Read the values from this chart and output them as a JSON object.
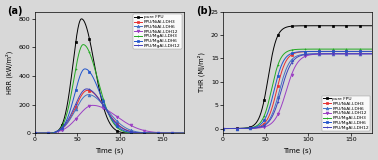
{
  "labels": [
    "pure FPU",
    "FPU/NiAl-LDH3",
    "FPU/NiAl-LDH6",
    "FPU/NiAl-LDH12",
    "FPU/MgAl-LDH3",
    "FPU/MgAl-LDH6",
    "FPU/MgAl-LDH12"
  ],
  "colors": [
    "black",
    "#e83030",
    "#4472c4",
    "#9b3fc4",
    "#22aa22",
    "#2255cc",
    "#4040bb"
  ],
  "markers": [
    "s",
    "s",
    "^",
    "v",
    "+",
    "s",
    "+"
  ],
  "hrr_ylim": [
    0,
    850
  ],
  "thr_ylim": [
    -1,
    25
  ],
  "hrr_yticks": [
    0,
    200,
    400,
    600,
    800
  ],
  "thr_yticks": [
    0,
    5,
    10,
    15,
    20,
    25
  ],
  "xlim": [
    0,
    175
  ],
  "xticks": [
    0,
    50,
    100,
    150
  ],
  "xlabel": "Time (s)",
  "hrr_ylabel": "HRR (kW/m²)",
  "thr_ylabel": "THR (MJ/m²)",
  "bg_color": "#d8d8d8",
  "panel_bg": "#d8d8d8"
}
